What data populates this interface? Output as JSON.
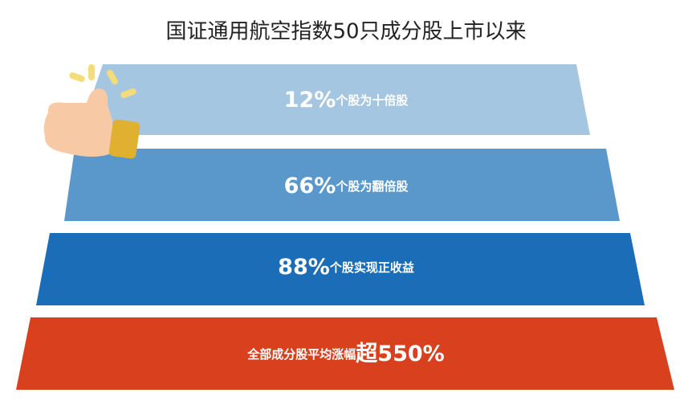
{
  "title": "国证通用航空指数50只成分股上市以来",
  "tiers": [
    {
      "highlight": "12%",
      "text": "个股为十倍股"
    },
    {
      "highlight": "66%",
      "text": "个股为翻倍股"
    },
    {
      "highlight": "88%",
      "text": "个股实现正收益"
    },
    {
      "text": "全部成分股平均涨幅",
      "highlight": "超550%"
    }
  ]
}
